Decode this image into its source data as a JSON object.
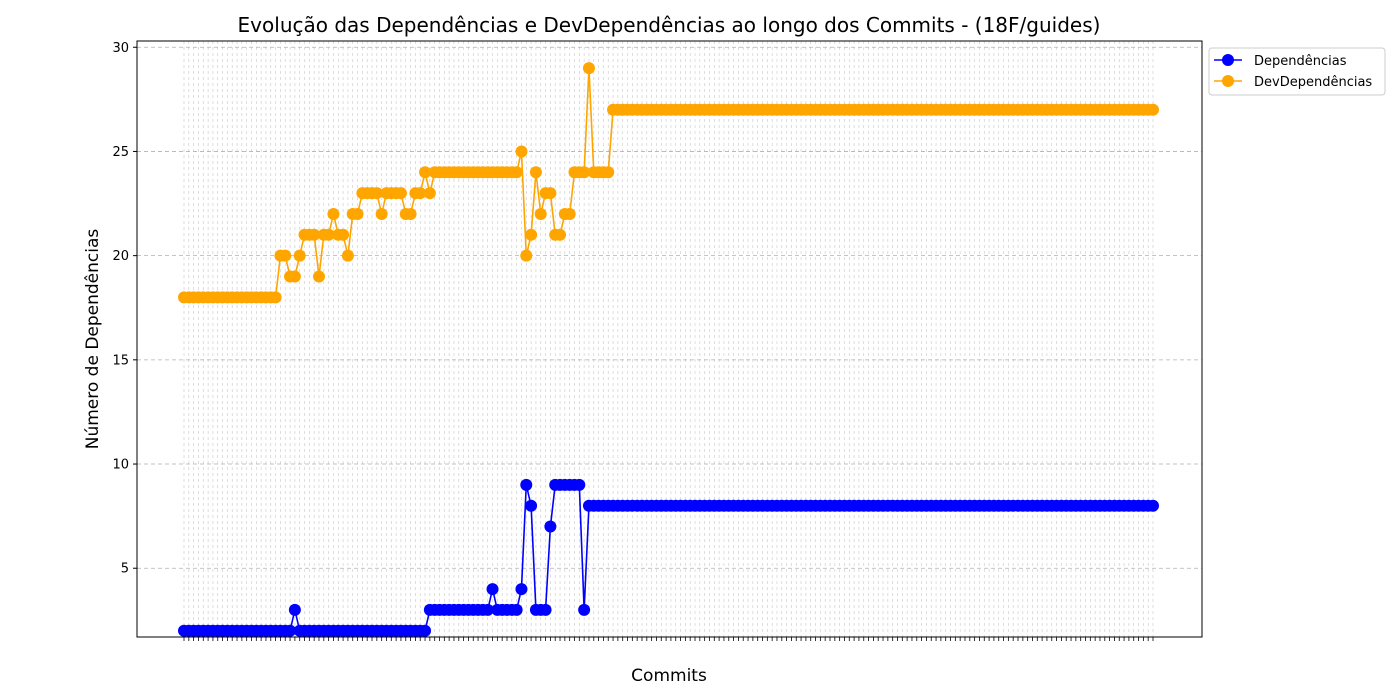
{
  "chart_data": {
    "type": "line",
    "title": "Evolução das Dependências e DevDependências ao longo dos Commits - (18F/guides)",
    "xlabel": "Commits",
    "ylabel": "Número de Dependências",
    "ylim": [
      1.7,
      30.3
    ],
    "yticks": [
      5,
      10,
      15,
      20,
      25,
      30
    ],
    "grid": true,
    "legend_position": "top-right-outside",
    "x_count": 202,
    "series": [
      {
        "name": "Dependências",
        "color": "#0000ff",
        "values": [
          2,
          2,
          2,
          2,
          2,
          2,
          2,
          2,
          2,
          2,
          2,
          2,
          2,
          2,
          2,
          2,
          2,
          2,
          2,
          2,
          2,
          2,
          2,
          3,
          2,
          2,
          2,
          2,
          2,
          2,
          2,
          2,
          2,
          2,
          2,
          2,
          2,
          2,
          2,
          2,
          2,
          2,
          2,
          2,
          2,
          2,
          2,
          2,
          2,
          2,
          2,
          3,
          3,
          3,
          3,
          3,
          3,
          3,
          3,
          3,
          3,
          3,
          3,
          3,
          4,
          3,
          3,
          3,
          3,
          3,
          4,
          9,
          8,
          3,
          3,
          3,
          7,
          9,
          9,
          9,
          9,
          9,
          9,
          3,
          8,
          8,
          8,
          8,
          8,
          8,
          8,
          8,
          8,
          8,
          8,
          8,
          8,
          8,
          8,
          8,
          8,
          8,
          8,
          8,
          8,
          8,
          8,
          8,
          8,
          8,
          8,
          8,
          8,
          8,
          8,
          8,
          8,
          8,
          8,
          8,
          8,
          8,
          8,
          8,
          8,
          8,
          8,
          8,
          8,
          8,
          8,
          8,
          8,
          8,
          8,
          8,
          8,
          8,
          8,
          8,
          8,
          8,
          8,
          8,
          8,
          8,
          8,
          8,
          8,
          8,
          8,
          8,
          8,
          8,
          8,
          8,
          8,
          8,
          8,
          8,
          8,
          8,
          8,
          8,
          8,
          8,
          8,
          8,
          8,
          8,
          8,
          8,
          8,
          8,
          8,
          8,
          8,
          8,
          8,
          8,
          8,
          8,
          8,
          8,
          8,
          8,
          8,
          8,
          8,
          8,
          8,
          8,
          8,
          8,
          8,
          8,
          8,
          8,
          8,
          8,
          8,
          8
        ]
      },
      {
        "name": "DevDependências",
        "color": "#ffa500",
        "values": [
          18,
          18,
          18,
          18,
          18,
          18,
          18,
          18,
          18,
          18,
          18,
          18,
          18,
          18,
          18,
          18,
          18,
          18,
          18,
          18,
          20,
          20,
          19,
          19,
          20,
          21,
          21,
          21,
          19,
          21,
          21,
          22,
          21,
          21,
          20,
          22,
          22,
          23,
          23,
          23,
          23,
          22,
          23,
          23,
          23,
          23,
          22,
          22,
          23,
          23,
          24,
          23,
          24,
          24,
          24,
          24,
          24,
          24,
          24,
          24,
          24,
          24,
          24,
          24,
          24,
          24,
          24,
          24,
          24,
          24,
          25,
          20,
          21,
          24,
          22,
          23,
          23,
          21,
          21,
          22,
          22,
          24,
          24,
          24,
          29,
          24,
          24,
          24,
          24,
          27,
          27,
          27,
          27,
          27,
          27,
          27,
          27,
          27,
          27,
          27,
          27,
          27,
          27,
          27,
          27,
          27,
          27,
          27,
          27,
          27,
          27,
          27,
          27,
          27,
          27,
          27,
          27,
          27,
          27,
          27,
          27,
          27,
          27,
          27,
          27,
          27,
          27,
          27,
          27,
          27,
          27,
          27,
          27,
          27,
          27,
          27,
          27,
          27,
          27,
          27,
          27,
          27,
          27,
          27,
          27,
          27,
          27,
          27,
          27,
          27,
          27,
          27,
          27,
          27,
          27,
          27,
          27,
          27,
          27,
          27,
          27,
          27,
          27,
          27,
          27,
          27,
          27,
          27,
          27,
          27,
          27,
          27,
          27,
          27,
          27,
          27,
          27,
          27,
          27,
          27,
          27,
          27,
          27,
          27,
          27,
          27,
          27,
          27,
          27,
          27,
          27,
          27,
          27,
          27,
          27,
          27,
          27,
          27,
          27,
          27,
          27,
          27
        ]
      }
    ]
  }
}
